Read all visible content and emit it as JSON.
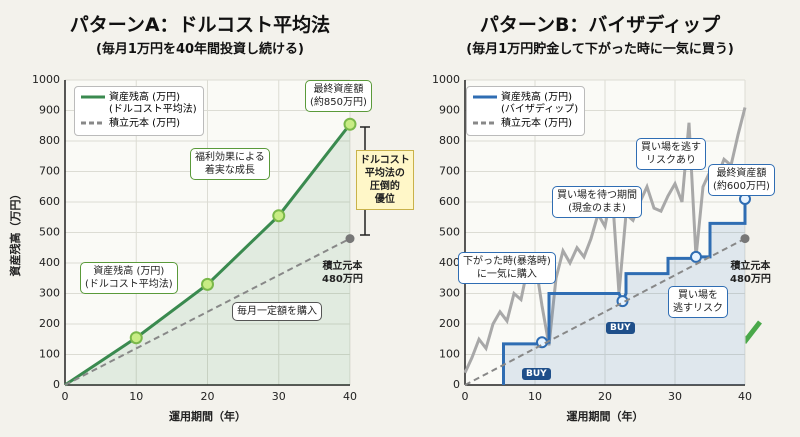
{
  "chart_data": [
    {
      "type": "line",
      "title": "パターンA：ドルコスト平均法",
      "subtitle": "(毎月1万円を40年間投資し続ける)",
      "x_label": "運用期間（年）",
      "y_label": "資産残高（万円）",
      "xlim": [
        0,
        40
      ],
      "xticks": [
        0,
        10,
        20,
        30,
        40
      ],
      "ylim": [
        0,
        1000
      ],
      "yticks": [
        0,
        100,
        200,
        300,
        400,
        500,
        600,
        700,
        800,
        900,
        1000
      ],
      "grid": true,
      "series": [
        {
          "name": "資産残高 (万円)\n(ドルコスト平均法)",
          "color": "#3a8a4f",
          "x": [
            0,
            10,
            20,
            30,
            40
          ],
          "values": [
            0,
            155,
            330,
            555,
            855
          ],
          "markers": true,
          "area": true
        },
        {
          "name": "積立元本 (万円)",
          "color": "#888888",
          "dash": true,
          "x": [
            0,
            40
          ],
          "values": [
            0,
            480
          ]
        }
      ],
      "annotations": [
        "最終資産額\n(約850万円)",
        "福利効果による\n着実な成長",
        "ドルコスト\n平均法の\n圧倒的\n優位",
        "資産残高 (万円)\n(ドルコスト平均法)",
        "積立元本\n480万円",
        "毎月一定額を購入"
      ]
    },
    {
      "type": "line",
      "title": "パターンB：バイザディップ",
      "subtitle": "(毎月1万円貯金して下がった時に一気に買う)",
      "x_label": "運用期間（年）",
      "xlim": [
        0,
        40
      ],
      "xticks": [
        0,
        10,
        20,
        30,
        40
      ],
      "ylim": [
        0,
        1000
      ],
      "yticks": [
        0,
        100,
        200,
        300,
        400,
        500,
        600,
        700,
        800,
        900,
        1000
      ],
      "grid": true,
      "series": [
        {
          "color": "#a8a8a8",
          "x": [
            0,
            1,
            2,
            3,
            4,
            5,
            6,
            7,
            8,
            9,
            10,
            11,
            12,
            13,
            14,
            15,
            16,
            17,
            18,
            19,
            20,
            21,
            22,
            23,
            24,
            25,
            26,
            27,
            28,
            29,
            30,
            31,
            32,
            33,
            34,
            35,
            36,
            37,
            38,
            39,
            40
          ],
          "values": [
            40,
            90,
            150,
            120,
            200,
            240,
            210,
            300,
            280,
            390,
            410,
            260,
            130,
            350,
            440,
            400,
            450,
            420,
            480,
            560,
            520,
            640,
            300,
            560,
            540,
            600,
            650,
            580,
            570,
            620,
            660,
            600,
            860,
            420,
            650,
            700,
            680,
            740,
            720,
            820,
            910
          ]
        },
        {
          "name": "資産残高 (万円)\n(バイザディップ)",
          "color": "#2f6db3",
          "area": true,
          "x": [
            5.5,
            5.5,
            11,
            11,
            12,
            12,
            22,
            22.5,
            23,
            23,
            29,
            29,
            33,
            33,
            35,
            35,
            40,
            40
          ],
          "values": [
            0,
            135,
            135,
            140,
            140,
            300,
            300,
            275,
            300,
            365,
            365,
            415,
            415,
            420,
            420,
            530,
            530,
            610
          ]
        },
        {
          "type": "scatter",
          "color": "#2f6db3",
          "x": [
            11,
            22.5,
            33,
            40
          ],
          "values": [
            140,
            275,
            420,
            610
          ]
        },
        {
          "name": "積立元本 (万円)",
          "color": "#888888",
          "dash": true,
          "x": [
            0,
            40
          ],
          "values": [
            0,
            480
          ]
        }
      ],
      "annotations": [
        "下がった時(暴落時)\nに一気に購入",
        "買い場を待つ期間\n(現金のまま)",
        "買い場を逃す\nリスクあり",
        "最終資産額\n(約600万円)",
        "積立元本\n480万円",
        "買い場を\n逃すリスク",
        "BUY",
        "BUY"
      ]
    }
  ]
}
